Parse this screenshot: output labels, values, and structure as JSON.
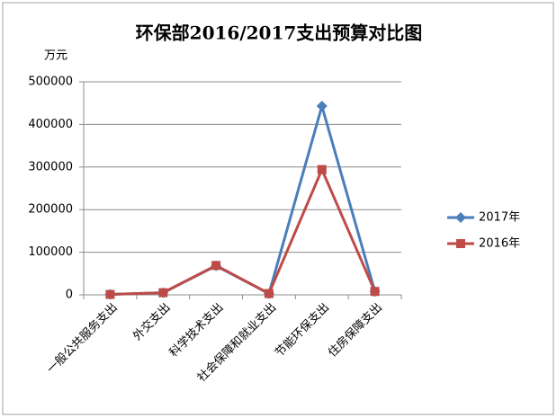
{
  "chart_data": {
    "type": "line",
    "title": "环保部2016/2017支出预算对比图",
    "y_label": "万元",
    "categories": [
      "一般公共服务支出",
      "外交支出",
      "科学技术支出",
      "社会保障和就业支出",
      "节能环保支出",
      "住房保障支出"
    ],
    "series": [
      {
        "name": "2017年",
        "color": "#4a7ebb",
        "marker": "diamond",
        "values": [
          1000,
          5000,
          68000,
          3000,
          443000,
          8000
        ]
      },
      {
        "name": "2016年",
        "color": "#be4b48",
        "marker": "square",
        "values": [
          1000,
          5000,
          69000,
          3000,
          294000,
          8000
        ]
      }
    ],
    "ylim": [
      0,
      500000
    ],
    "yticks": [
      0,
      100000,
      200000,
      300000,
      400000,
      500000
    ],
    "grid": true,
    "legend": "right"
  }
}
